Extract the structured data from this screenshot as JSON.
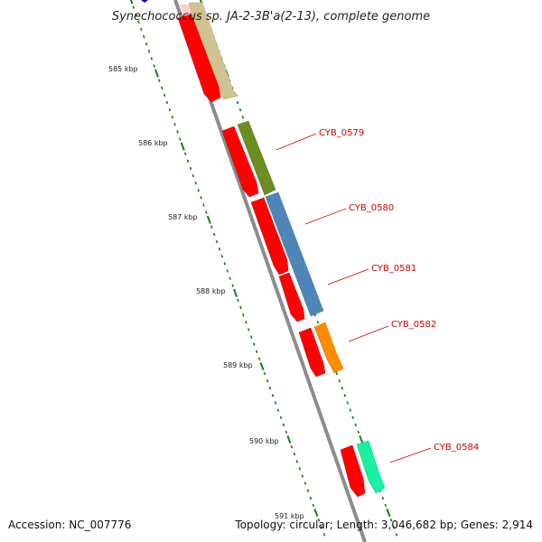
{
  "title": "Synechococcus sp. JA-2-3B'a(2-13), complete genome",
  "scale_labels": [
    {
      "name": "585 kbp"
    },
    {
      "name": "586 kbp"
    },
    {
      "name": "587 kbp"
    },
    {
      "name": "588 kbp"
    },
    {
      "name": "589 kbp"
    },
    {
      "name": "590 kbp"
    },
    {
      "name": "591 kbp"
    }
  ],
  "gene_labels": [
    {
      "name": "CYB_0579"
    },
    {
      "name": "CYB_0580"
    },
    {
      "name": "CYB_0581"
    },
    {
      "name": "CYB_0582"
    },
    {
      "name": "CYB_0584"
    }
  ],
  "colors": {
    "backbone": "#8c8c8c",
    "tick": "#1a7a1a",
    "cds": "#ff0000",
    "label": "#cc0000"
  },
  "footer": {
    "accession": "Accession: NC_007776",
    "summary": "Topology: circular; Length: 3,046,682 bp; Genes: 2,914"
  }
}
